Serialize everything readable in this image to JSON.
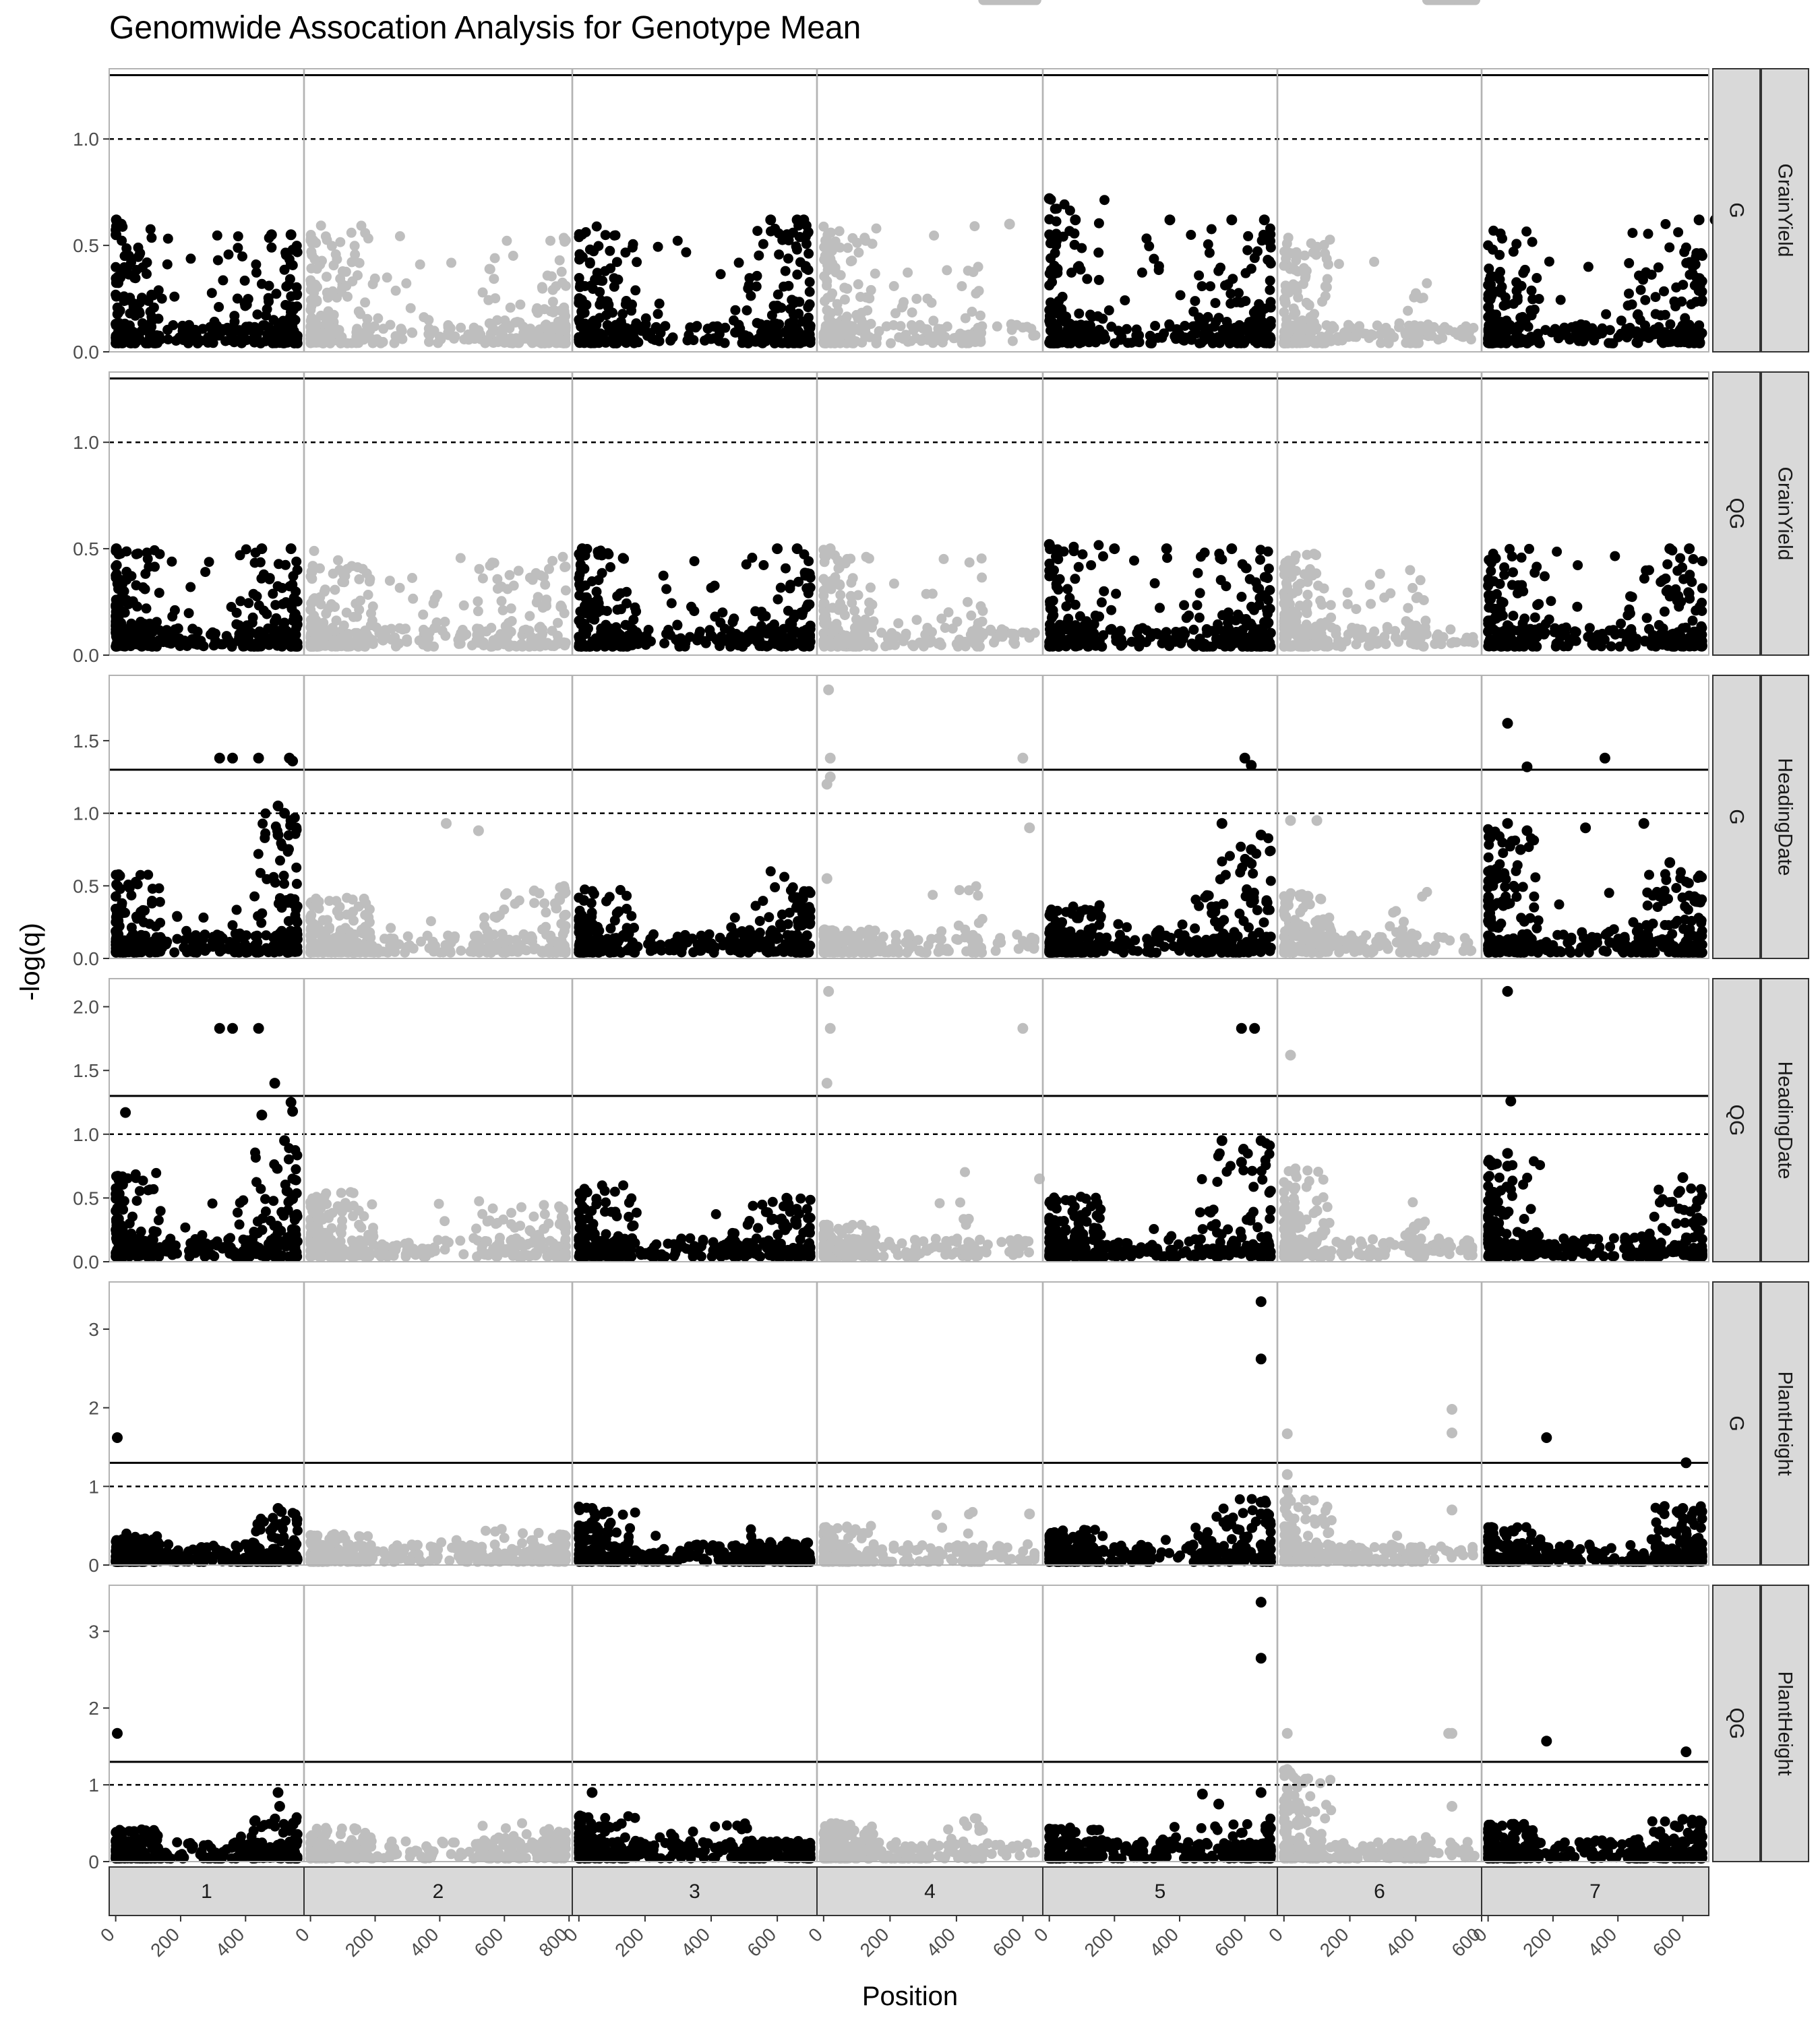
{
  "chart_data": {
    "type": "scatter",
    "title": "Genomwide Assocation Analysis for Genotype Mean",
    "xlabel": "Position",
    "ylabel": "-log(q)",
    "chromosomes": [
      {
        "label": "1",
        "xlim": [
          -20,
          580
        ],
        "ticks": [
          0,
          200,
          400
        ]
      },
      {
        "label": "2",
        "xlim": [
          -20,
          810
        ],
        "ticks": [
          0,
          200,
          400,
          600,
          800
        ]
      },
      {
        "label": "3",
        "xlim": [
          -20,
          720
        ],
        "ticks": [
          0,
          200,
          400,
          600
        ]
      },
      {
        "label": "4",
        "xlim": [
          -20,
          660
        ],
        "ticks": [
          0,
          200,
          400,
          600
        ]
      },
      {
        "label": "5",
        "xlim": [
          -20,
          700
        ],
        "ticks": [
          0,
          200,
          400,
          600
        ]
      },
      {
        "label": "6",
        "xlim": [
          -20,
          600
        ],
        "ticks": [
          0,
          200,
          400,
          600
        ]
      },
      {
        "label": "7",
        "xlim": [
          -20,
          680
        ],
        "ticks": [
          0,
          200,
          400,
          600
        ]
      }
    ],
    "point_colors": {
      "odd": "#000000",
      "even": "#bebebe"
    },
    "hlines": {
      "solid": 1.3,
      "dashed": 1.0
    },
    "rows": [
      {
        "trait": "GrainYield",
        "method": "G",
        "ylim": [
          0,
          1.33
        ],
        "ticks": [
          {
            "v": 0,
            "label": "0.0"
          },
          {
            "v": 0.5,
            "label": "0.5"
          },
          {
            "v": 1.0,
            "label": "1.0"
          }
        ],
        "peaks": [
          [
            0.6,
            0.6,
            0.6,
            0.55
          ],
          [
            0.6,
            0.55,
            0.6,
            0.55,
            0.6
          ],
          [
            0.6,
            0.55,
            0.6,
            0.6
          ],
          [
            0.6,
            0.55,
            0.6
          ],
          [
            0.72,
            0.6,
            0.6,
            0.6
          ],
          [
            0.55,
            0.5,
            0.45
          ],
          [
            0.6,
            0.6,
            0.6,
            0.6
          ]
        ],
        "hits": [
          [
            0,
            2,
            0.62
          ],
          [
            0,
            1,
            0.55
          ],
          [
            0,
            17,
            0.6
          ],
          [
            0,
            480,
            0.55
          ],
          [
            0,
            540,
            0.55
          ],
          [
            2,
            580,
            0.62
          ],
          [
            2,
            660,
            0.62
          ],
          [
            2,
            680,
            0.62
          ],
          [
            3,
            560,
            0.6
          ],
          [
            4,
            0,
            0.72
          ],
          [
            4,
            80,
            0.62
          ],
          [
            4,
            370,
            0.62
          ],
          [
            4,
            560,
            0.62
          ],
          [
            4,
            660,
            0.62
          ],
          [
            6,
            650,
            0.62
          ],
          [
            6,
            700,
            0.62
          ]
        ]
      },
      {
        "trait": "GrainYield",
        "method": "QG",
        "ylim": [
          0,
          1.33
        ],
        "ticks": [
          {
            "v": 0,
            "label": "0.0"
          },
          {
            "v": 0.5,
            "label": "0.5"
          },
          {
            "v": 1.0,
            "label": "1.0"
          }
        ],
        "peaks": [
          [
            0.5,
            0.45,
            0.5,
            0.5
          ],
          [
            0.5,
            0.45,
            0.5,
            0.5,
            0.5
          ],
          [
            0.5,
            0.45,
            0.5,
            0.5
          ],
          [
            0.5,
            0.45,
            0.5
          ],
          [
            0.52,
            0.5,
            0.5,
            0.5
          ],
          [
            0.48,
            0.45,
            0.42
          ],
          [
            0.5,
            0.5,
            0.5,
            0.5
          ]
        ],
        "hits": [
          [
            0,
            2,
            0.5
          ],
          [
            0,
            450,
            0.5
          ],
          [
            0,
            540,
            0.5
          ],
          [
            2,
            10,
            0.5
          ],
          [
            2,
            600,
            0.5
          ],
          [
            2,
            660,
            0.5
          ],
          [
            3,
            20,
            0.5
          ],
          [
            4,
            0,
            0.52
          ],
          [
            4,
            200,
            0.5
          ],
          [
            4,
            360,
            0.5
          ],
          [
            4,
            560,
            0.5
          ],
          [
            6,
            560,
            0.5
          ],
          [
            6,
            620,
            0.5
          ]
        ]
      },
      {
        "trait": "HeadingDate",
        "method": "G",
        "ylim": [
          0,
          1.95
        ],
        "ticks": [
          {
            "v": 0,
            "label": "0.0"
          },
          {
            "v": 0.5,
            "label": "0.5"
          },
          {
            "v": 1.0,
            "label": "1.0"
          },
          {
            "v": 1.5,
            "label": "1.5"
          }
        ],
        "peaks": [
          [
            0.6,
            0.3,
            0.4,
            1.0
          ],
          [
            0.45,
            0.3,
            0.5,
            0.5,
            0.5
          ],
          [
            0.5,
            0.15,
            0.3,
            0.6
          ],
          [
            0.2,
            0.1,
            0.5
          ],
          [
            0.4,
            0.3,
            0.5,
            0.9
          ],
          [
            0.45,
            0.15,
            0.5
          ],
          [
            0.9,
            0.5,
            0.5,
            0.6
          ]
        ],
        "hits": [
          [
            0,
            320,
            1.38
          ],
          [
            0,
            360,
            1.38
          ],
          [
            0,
            440,
            1.38
          ],
          [
            0,
            535,
            1.38
          ],
          [
            0,
            545,
            1.36
          ],
          [
            0,
            500,
            1.05
          ],
          [
            0,
            520,
            1.0
          ],
          [
            0,
            540,
            0.95
          ],
          [
            0,
            500,
            0.85
          ],
          [
            1,
            420,
            0.93
          ],
          [
            1,
            520,
            0.88
          ],
          [
            3,
            15,
            1.85
          ],
          [
            3,
            20,
            1.38
          ],
          [
            3,
            10,
            1.2
          ],
          [
            3,
            20,
            1.25
          ],
          [
            3,
            600,
            1.38
          ],
          [
            3,
            620,
            0.9
          ],
          [
            3,
            10,
            0.55
          ],
          [
            4,
            530,
            0.93
          ],
          [
            4,
            600,
            1.38
          ],
          [
            4,
            620,
            1.33
          ],
          [
            4,
            650,
            0.85
          ],
          [
            4,
            620,
            0.75
          ],
          [
            5,
            20,
            0.95
          ],
          [
            5,
            100,
            0.95
          ],
          [
            6,
            60,
            1.62
          ],
          [
            6,
            120,
            1.32
          ],
          [
            6,
            360,
            1.38
          ],
          [
            6,
            60,
            0.93
          ],
          [
            6,
            120,
            0.88
          ],
          [
            6,
            480,
            0.93
          ],
          [
            6,
            300,
            0.9
          ],
          [
            6,
            100,
            0.75
          ],
          [
            6,
            560,
            0.66
          ]
        ]
      },
      {
        "trait": "HeadingDate",
        "method": "QG",
        "ylim": [
          0,
          2.22
        ],
        "ticks": [
          {
            "v": 0,
            "label": "0.0"
          },
          {
            "v": 0.5,
            "label": "0.5"
          },
          {
            "v": 1.0,
            "label": "1.0"
          },
          {
            "v": 1.5,
            "label": "1.5"
          },
          {
            "v": 2.0,
            "label": "2.0"
          }
        ],
        "peaks": [
          [
            0.7,
            0.3,
            0.5,
            0.9
          ],
          [
            0.55,
            0.15,
            0.5,
            0.45,
            0.55
          ],
          [
            0.6,
            0.1,
            0.4,
            0.55
          ],
          [
            0.3,
            0.1,
            0.85
          ],
          [
            0.55,
            0.3,
            0.7,
            0.95
          ],
          [
            0.75,
            0.1,
            0.5
          ],
          [
            0.8,
            0.2,
            0.2,
            0.65
          ]
        ],
        "hits": [
          [
            0,
            30,
            1.17
          ],
          [
            0,
            320,
            1.83
          ],
          [
            0,
            360,
            1.83
          ],
          [
            0,
            440,
            1.83
          ],
          [
            0,
            490,
            1.4
          ],
          [
            0,
            450,
            1.15
          ],
          [
            0,
            540,
            1.25
          ],
          [
            0,
            545,
            1.18
          ],
          [
            0,
            520,
            0.95
          ],
          [
            3,
            15,
            2.12
          ],
          [
            3,
            20,
            1.83
          ],
          [
            3,
            10,
            1.4
          ],
          [
            3,
            600,
            1.83
          ],
          [
            3,
            650,
            0.65
          ],
          [
            4,
            590,
            1.83
          ],
          [
            4,
            630,
            1.83
          ],
          [
            4,
            530,
            0.95
          ],
          [
            4,
            650,
            0.95
          ],
          [
            4,
            590,
            0.78
          ],
          [
            5,
            20,
            1.62
          ],
          [
            5,
            100,
            0.4
          ],
          [
            6,
            60,
            2.12
          ],
          [
            6,
            70,
            1.26
          ],
          [
            6,
            60,
            0.85
          ],
          [
            6,
            60,
            0.75
          ],
          [
            6,
            600,
            0.66
          ]
        ]
      },
      {
        "trait": "PlantHeight",
        "method": "G",
        "ylim": [
          0,
          3.6
        ],
        "ticks": [
          {
            "v": 0,
            "label": "0"
          },
          {
            "v": 1,
            "label": "1"
          },
          {
            "v": 2,
            "label": "2"
          },
          {
            "v": 3,
            "label": "3"
          }
        ],
        "peaks": [
          [
            0.4,
            0.15,
            0.3,
            0.7
          ],
          [
            0.4,
            0.2,
            0.5,
            0.5,
            0.5
          ],
          [
            0.75,
            0.5,
            0.5,
            0.3
          ],
          [
            0.5,
            0.05,
            0.7
          ],
          [
            0.45,
            0.15,
            0.5,
            0.85
          ],
          [
            0.9,
            0.15,
            0.4
          ],
          [
            0.5,
            0.2,
            0.3,
            0.75
          ]
        ],
        "hits": [
          [
            0,
            5,
            1.62
          ],
          [
            0,
            500,
            0.72
          ],
          [
            0,
            510,
            0.68
          ],
          [
            2,
            40,
            0.72
          ],
          [
            3,
            620,
            0.65
          ],
          [
            4,
            650,
            3.35
          ],
          [
            4,
            650,
            2.62
          ],
          [
            4,
            650,
            0.8
          ],
          [
            4,
            650,
            0.65
          ],
          [
            5,
            10,
            1.67
          ],
          [
            5,
            10,
            1.15
          ],
          [
            5,
            10,
            0.95
          ],
          [
            5,
            510,
            1.98
          ],
          [
            5,
            510,
            1.68
          ],
          [
            5,
            510,
            0.7
          ],
          [
            6,
            180,
            1.62
          ],
          [
            6,
            610,
            1.3
          ],
          [
            6,
            600,
            0.72
          ]
        ]
      },
      {
        "trait": "PlantHeight",
        "method": "QG",
        "ylim": [
          0,
          3.6
        ],
        "ticks": [
          {
            "v": 0,
            "label": "0"
          },
          {
            "v": 1,
            "label": "1"
          },
          {
            "v": 2,
            "label": "2"
          },
          {
            "v": 3,
            "label": "3"
          }
        ],
        "peaks": [
          [
            0.45,
            0.15,
            0.35,
            0.6
          ],
          [
            0.45,
            0.2,
            0.5,
            0.5,
            0.5
          ],
          [
            0.6,
            0.45,
            0.5,
            0.3
          ],
          [
            0.5,
            0.05,
            0.65
          ],
          [
            0.45,
            0.15,
            0.5,
            0.6
          ],
          [
            1.2,
            0.15,
            0.35
          ],
          [
            0.5,
            0.15,
            0.3,
            0.55
          ]
        ],
        "hits": [
          [
            0,
            5,
            1.67
          ],
          [
            0,
            500,
            0.9
          ],
          [
            0,
            505,
            0.72
          ],
          [
            2,
            40,
            0.9
          ],
          [
            4,
            650,
            3.38
          ],
          [
            4,
            650,
            2.65
          ],
          [
            4,
            470,
            0.88
          ],
          [
            4,
            650,
            0.9
          ],
          [
            4,
            520,
            0.75
          ],
          [
            5,
            10,
            1.67
          ],
          [
            5,
            10,
            1.2
          ],
          [
            5,
            10,
            0.95
          ],
          [
            5,
            500,
            1.67
          ],
          [
            5,
            510,
            1.67
          ],
          [
            5,
            510,
            0.72
          ],
          [
            6,
            180,
            1.57
          ],
          [
            6,
            610,
            1.43
          ],
          [
            6,
            600,
            0.55
          ]
        ]
      }
    ]
  }
}
